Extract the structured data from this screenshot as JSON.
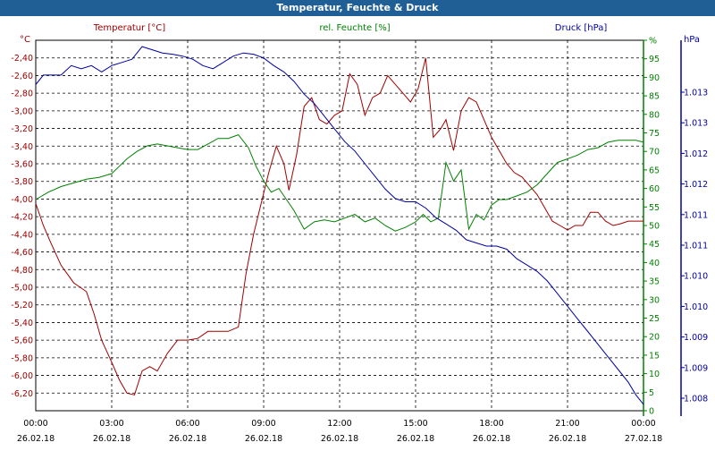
{
  "window": {
    "title": "Temperatur, Feuchte & Druck"
  },
  "chart_data": {
    "type": "line",
    "grid": true,
    "legend_placement": "top",
    "x": {
      "ticks": [
        {
          "time": "00:00",
          "date": "26.02.18"
        },
        {
          "time": "03:00",
          "date": "26.02.18"
        },
        {
          "time": "06:00",
          "date": "26.02.18"
        },
        {
          "time": "09:00",
          "date": "26.02.18"
        },
        {
          "time": "12:00",
          "date": "26.02.18"
        },
        {
          "time": "15:00",
          "date": "26.02.18"
        },
        {
          "time": "18:00",
          "date": "26.02.18"
        },
        {
          "time": "21:00",
          "date": "26.02.18"
        },
        {
          "time": "00:00",
          "date": "27.02.18"
        }
      ],
      "range_hours": [
        0,
        24
      ]
    },
    "axes": {
      "temperature": {
        "label": "Temperatur [°C]",
        "unit": "°C",
        "color": "#a00000",
        "range": [
          -6.4,
          -2.2
        ],
        "ticks": [
          "-2,40",
          "-2,60",
          "-2,80",
          "-3,00",
          "-3,20",
          "-3,40",
          "-3,60",
          "-3,80",
          "-4,00",
          "-4,20",
          "-4,40",
          "-4,60",
          "-4,80",
          "-5,00",
          "-5,20",
          "-5,40",
          "-5,60",
          "-5,80",
          "-6,00",
          "-6,20"
        ]
      },
      "humidity": {
        "label": "rel. Feuchte [%]",
        "unit": "%",
        "color": "#008000",
        "range": [
          0,
          100
        ],
        "ticks": [
          "0",
          "5",
          "10",
          "15",
          "20",
          "25",
          "30",
          "35",
          "40",
          "45",
          "50",
          "55",
          "60",
          "65",
          "70",
          "75",
          "80",
          "85",
          "90",
          "95",
          "%"
        ]
      },
      "pressure": {
        "label": "Druck [hPa]",
        "unit": "hPa",
        "color": "#0000a0",
        "range": [
          1007.75,
          1013.6
        ],
        "ticks": [
          "1.013",
          "1.013",
          "1.012",
          "1.012",
          "1.011",
          "1.011",
          "1.010",
          "1.010",
          "1.009",
          "1.009",
          "1.008"
        ]
      }
    },
    "series": [
      {
        "name": "Temperatur [°C]",
        "axis": "temperature",
        "color": "#a00000",
        "x": [
          0,
          0.3,
          0.6,
          1.0,
          1.5,
          2.0,
          2.3,
          2.6,
          3.0,
          3.3,
          3.6,
          3.9,
          4.2,
          4.5,
          4.8,
          5.2,
          5.6,
          6.0,
          6.4,
          6.8,
          7.2,
          7.6,
          8.0,
          8.3,
          8.6,
          8.9,
          9.2,
          9.5,
          9.8,
          10.0,
          10.3,
          10.6,
          10.9,
          11.2,
          11.5,
          11.8,
          12.1,
          12.4,
          12.7,
          13.0,
          13.3,
          13.6,
          13.9,
          14.2,
          14.5,
          14.8,
          15.1,
          15.4,
          15.7,
          16.0,
          16.2,
          16.5,
          16.8,
          17.1,
          17.4,
          17.7,
          18.0,
          18.3,
          18.6,
          18.9,
          19.2,
          19.5,
          19.8,
          20.1,
          20.4,
          20.7,
          21.0,
          21.3,
          21.6,
          21.9,
          22.2,
          22.5,
          22.8,
          23.1,
          23.4,
          23.7,
          24.0
        ],
        "y": [
          -4.05,
          -4.3,
          -4.5,
          -4.75,
          -4.95,
          -5.05,
          -5.3,
          -5.6,
          -5.85,
          -6.05,
          -6.2,
          -6.22,
          -5.95,
          -5.9,
          -5.95,
          -5.75,
          -5.6,
          -5.6,
          -5.58,
          -5.5,
          -5.5,
          -5.5,
          -5.45,
          -4.85,
          -4.4,
          -4.05,
          -3.7,
          -3.4,
          -3.6,
          -3.9,
          -3.5,
          -2.95,
          -2.85,
          -3.1,
          -3.15,
          -3.05,
          -3.0,
          -2.58,
          -2.7,
          -3.05,
          -2.85,
          -2.8,
          -2.6,
          -2.7,
          -2.8,
          -2.9,
          -2.75,
          -2.4,
          -3.3,
          -3.2,
          -3.1,
          -3.45,
          -3.0,
          -2.85,
          -2.9,
          -3.1,
          -3.3,
          -3.45,
          -3.6,
          -3.7,
          -3.75,
          -3.85,
          -3.95,
          -4.1,
          -4.25,
          -4.3,
          -4.35,
          -4.3,
          -4.3,
          -4.15,
          -4.15,
          -4.25,
          -4.3,
          -4.28,
          -4.25,
          -4.25,
          -4.25
        ]
      },
      {
        "name": "rel. Feuchte [%]",
        "axis": "humidity",
        "color": "#008000",
        "x": [
          0,
          0.5,
          1.0,
          1.5,
          2.0,
          2.5,
          3.0,
          3.3,
          3.6,
          4.0,
          4.4,
          4.8,
          5.2,
          5.6,
          6.0,
          6.4,
          6.8,
          7.2,
          7.6,
          8.0,
          8.4,
          8.7,
          9.0,
          9.3,
          9.6,
          9.9,
          10.2,
          10.6,
          11.0,
          11.4,
          11.8,
          12.2,
          12.6,
          13.0,
          13.4,
          13.8,
          14.2,
          14.6,
          15.0,
          15.3,
          15.6,
          15.9,
          16.2,
          16.5,
          16.8,
          17.1,
          17.4,
          17.7,
          18.0,
          18.3,
          18.6,
          19.0,
          19.4,
          19.8,
          20.2,
          20.6,
          21.0,
          21.4,
          21.8,
          22.2,
          22.6,
          23.0,
          23.4,
          23.7,
          24.0
        ],
        "y": [
          57,
          59,
          60.5,
          61.5,
          62.5,
          63,
          64,
          66,
          68,
          70,
          71.5,
          72,
          71.5,
          71,
          70.5,
          70.5,
          72,
          73.5,
          73.5,
          74.5,
          71,
          66,
          62,
          59,
          60,
          57,
          54,
          49,
          51,
          51.5,
          51,
          52,
          53,
          51,
          52,
          50,
          48.5,
          49.5,
          51,
          53,
          51,
          52,
          67,
          62,
          65,
          49,
          53,
          51.5,
          55.5,
          57,
          57,
          58,
          59,
          61,
          64,
          67,
          68,
          69,
          70.5,
          71,
          72.5,
          73,
          73,
          73,
          72.5
        ]
      },
      {
        "name": "Druck [hPa]",
        "axis": "pressure",
        "color": "#0000a0",
        "x": [
          0,
          0.3,
          0.6,
          1.0,
          1.4,
          1.8,
          2.2,
          2.6,
          3.0,
          3.4,
          3.8,
          4.2,
          4.6,
          5.0,
          5.4,
          5.8,
          6.2,
          6.6,
          7.0,
          7.4,
          7.8,
          8.2,
          8.6,
          9.0,
          9.4,
          9.8,
          10.2,
          10.6,
          11.0,
          11.4,
          11.8,
          12.2,
          12.6,
          13.0,
          13.4,
          13.8,
          14.2,
          14.6,
          15.0,
          15.4,
          15.8,
          16.2,
          16.6,
          17.0,
          17.4,
          17.8,
          18.2,
          18.6,
          19.0,
          19.4,
          19.8,
          20.2,
          20.6,
          21.0,
          21.4,
          21.8,
          22.2,
          22.6,
          23.0,
          23.4,
          23.7,
          24.0
        ],
        "y": [
          1012.9,
          1013.05,
          1013.05,
          1013.05,
          1013.2,
          1013.15,
          1013.2,
          1013.1,
          1013.2,
          1013.25,
          1013.3,
          1013.5,
          1013.45,
          1013.4,
          1013.38,
          1013.35,
          1013.3,
          1013.2,
          1013.15,
          1013.25,
          1013.35,
          1013.4,
          1013.38,
          1013.32,
          1013.2,
          1013.1,
          1012.95,
          1012.75,
          1012.6,
          1012.4,
          1012.2,
          1012.0,
          1011.85,
          1011.65,
          1011.45,
          1011.25,
          1011.1,
          1011.05,
          1011.05,
          1010.95,
          1010.8,
          1010.7,
          1010.6,
          1010.45,
          1010.4,
          1010.35,
          1010.35,
          1010.3,
          1010.15,
          1010.05,
          1009.95,
          1009.8,
          1009.6,
          1009.4,
          1009.2,
          1009.0,
          1008.8,
          1008.6,
          1008.4,
          1008.2,
          1008.0,
          1007.85
        ]
      }
    ]
  }
}
